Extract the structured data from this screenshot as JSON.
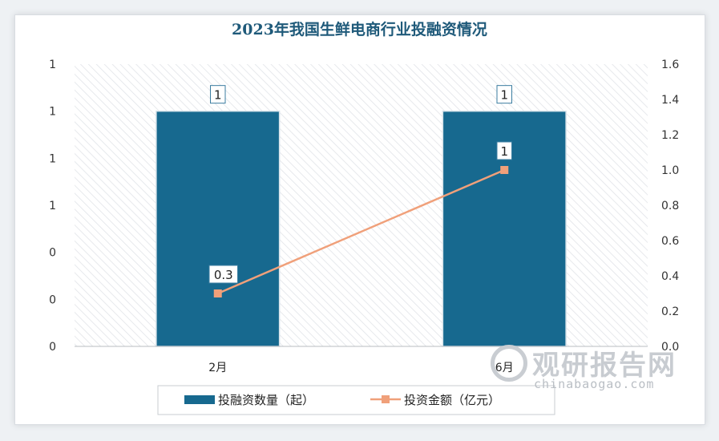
{
  "chart_data": {
    "type": "bar",
    "title": "2023年我国生鲜电商行业投融资情况",
    "categories": [
      "2月",
      "6月"
    ],
    "series": [
      {
        "name": "投融资数量（起）",
        "type": "bar",
        "axis": "left",
        "values": [
          1,
          1
        ],
        "labels": [
          "1",
          "1"
        ],
        "color": "#17698f"
      },
      {
        "name": "投资金额（亿元）",
        "type": "line",
        "axis": "right",
        "values": [
          0.3,
          1.0
        ],
        "labels": [
          "0.3",
          "1"
        ],
        "color": "#f0a07a"
      }
    ],
    "y_left": {
      "ticks": [
        "1",
        "1",
        "1",
        "1",
        "0",
        "0",
        "0"
      ],
      "range": [
        0,
        1.2
      ]
    },
    "y_right": {
      "ticks": [
        "1.6",
        "1.4",
        "1.2",
        "1.0",
        "0.8",
        "0.6",
        "0.4",
        "0.2",
        "0.0"
      ],
      "range": [
        0,
        1.6
      ]
    },
    "grid": false,
    "legend_position": "bottom"
  },
  "watermark": {
    "cn": "观研报告网",
    "en": "chinabaogao.com"
  }
}
